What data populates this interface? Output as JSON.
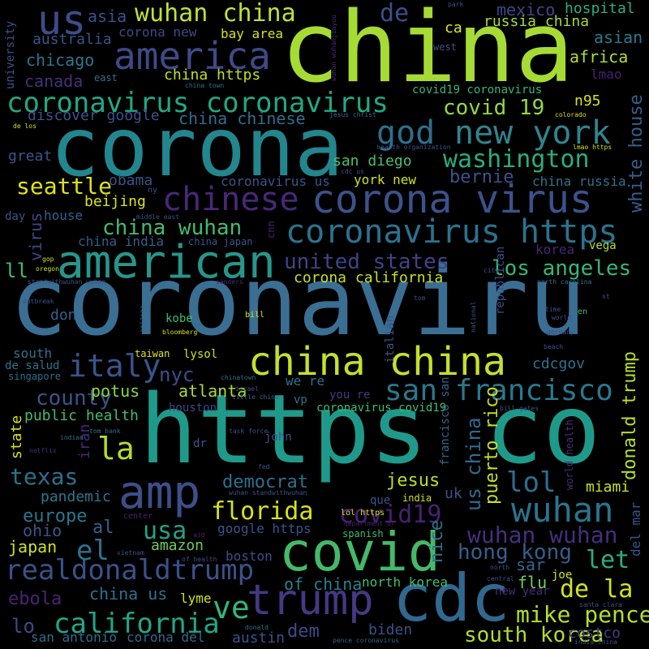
{
  "words": [
    {
      "text": "coronaviru",
      "color": "#3b6e93"
    },
    {
      "text": "https co",
      "color": "#1f9a8a"
    },
    {
      "text": "china",
      "color": "#a6db35"
    },
    {
      "text": "corona",
      "color": "#23868e"
    },
    {
      "text": "american",
      "color": "#27968b"
    },
    {
      "text": "covid",
      "color": "#45b96a"
    },
    {
      "text": "cdc",
      "color": "#31688e"
    },
    {
      "text": "trump",
      "color": "#443983"
    },
    {
      "text": "amp",
      "color": "#3c4f8a"
    },
    {
      "text": "china china",
      "color": "#c4e02c"
    },
    {
      "text": "corona virus",
      "color": "#3b528b"
    },
    {
      "text": "coronavirus https",
      "color": "#2c728e"
    },
    {
      "text": "coronavirus coronavirus",
      "color": "#23a883"
    },
    {
      "text": "god",
      "color": "#2e6f8e"
    },
    {
      "text": "new york",
      "color": "#31848d"
    },
    {
      "text": "america",
      "color": "#3e4a89"
    },
    {
      "text": "us",
      "color": "#3e4c8a"
    },
    {
      "text": "wuhan china",
      "color": "#bfe03a"
    },
    {
      "text": "chinese",
      "color": "#482878"
    },
    {
      "text": "san francisco",
      "color": "#2a788e"
    },
    {
      "text": "wuhan",
      "color": "#2b748e"
    },
    {
      "text": "realdonaldtrump",
      "color": "#3b5289"
    },
    {
      "text": "california",
      "color": "#22a685"
    },
    {
      "text": "florida",
      "color": "#d8e219"
    },
    {
      "text": "italy",
      "color": "#3a548c"
    },
    {
      "text": "usa",
      "color": "#20a386"
    },
    {
      "text": "washington",
      "color": "#28ae80"
    },
    {
      "text": "covid19",
      "color": "#482173"
    },
    {
      "text": "wuhan wuhan",
      "color": "#472e7c"
    },
    {
      "text": "mike pence",
      "color": "#b5de2b"
    },
    {
      "text": "south korea",
      "color": "#b0dd2f"
    },
    {
      "text": "hong kong",
      "color": "#355f8d"
    },
    {
      "text": "de la",
      "color": "#d2e21b"
    },
    {
      "text": "let",
      "color": "#29af7f"
    },
    {
      "text": "lol",
      "color": "#2e6e8e"
    },
    {
      "text": "la",
      "color": "#b5de2b"
    },
    {
      "text": "el",
      "color": "#2c728e"
    },
    {
      "text": "ve",
      "color": "#34b679"
    },
    {
      "text": "texas",
      "color": "#2d708e"
    },
    {
      "text": "county",
      "color": "#3b528b"
    },
    {
      "text": "seattle",
      "color": "#dde318"
    },
    {
      "text": "united states",
      "color": "#404387"
    },
    {
      "text": "los angeles",
      "color": "#35b779"
    },
    {
      "text": "covid 19",
      "color": "#95d840"
    },
    {
      "text": "china wuhan",
      "color": "#3fbc73"
    },
    {
      "text": "bernie",
      "color": "#3b528b"
    },
    {
      "text": "white house",
      "color": "#355f8d"
    },
    {
      "text": "donald trump",
      "color": "#b8de29"
    },
    {
      "text": "us china",
      "color": "#31688e"
    },
    {
      "text": "puerto rico",
      "color": "#c5e021"
    },
    {
      "text": "europe",
      "color": "#2a778e"
    },
    {
      "text": "nyc",
      "color": "#3d4d8a"
    },
    {
      "text": "atlanta",
      "color": "#a8db34"
    },
    {
      "text": "jesus",
      "color": "#b8de29"
    },
    {
      "text": "democrat",
      "color": "#2e6f8e"
    },
    {
      "text": "japan",
      "color": "#d0e11c"
    },
    {
      "text": "ebola",
      "color": "#482475"
    },
    {
      "text": "amazon",
      "color": "#6ccd5a"
    },
    {
      "text": "ohio",
      "color": "#3a548c"
    },
    {
      "text": "al",
      "color": "#35608d"
    },
    {
      "text": "lo",
      "color": "#3e4989"
    },
    {
      "text": "dem",
      "color": "#3e4a89"
    },
    {
      "text": "biden",
      "color": "#3b528b"
    },
    {
      "text": "austin",
      "color": "#3a538b"
    },
    {
      "text": "san antonio",
      "color": "#2e6e8e"
    },
    {
      "text": "corona del",
      "color": "#2f6c8e"
    },
    {
      "text": "costco",
      "color": "#433e85"
    },
    {
      "text": "boston",
      "color": "#3c4f8a"
    },
    {
      "text": "miami",
      "color": "#c5e021"
    },
    {
      "text": "nice",
      "color": "#2c738e"
    },
    {
      "text": "china us",
      "color": "#2c728e"
    },
    {
      "text": "lyme",
      "color": "#d2e21b"
    },
    {
      "text": "of china",
      "color": "#26818e"
    },
    {
      "text": "north korea",
      "color": "#3fbc73"
    },
    {
      "text": "san diego",
      "color": "#4ac16d"
    },
    {
      "text": "york new",
      "color": "#d0e11c"
    },
    {
      "text": "beijing",
      "color": "#dae319"
    },
    {
      "text": "obama",
      "color": "#3a538b"
    },
    {
      "text": "chicago",
      "color": "#2a788e"
    },
    {
      "text": "canada",
      "color": "#472f7d"
    },
    {
      "text": "australia",
      "color": "#3a548c"
    },
    {
      "text": "asia",
      "color": "#3b518b"
    },
    {
      "text": "de",
      "color": "#3d4e8a"
    },
    {
      "text": "ca",
      "color": "#e5e419"
    },
    {
      "text": "mexico",
      "color": "#3f4788"
    },
    {
      "text": "hospital",
      "color": "#29af7f"
    },
    {
      "text": "russia china",
      "color": "#a5db36"
    },
    {
      "text": "asian",
      "color": "#287c8e"
    },
    {
      "text": "africa",
      "color": "#b2dd2d"
    },
    {
      "text": "lmao",
      "color": "#482071"
    },
    {
      "text": "n95",
      "color": "#d8e219"
    },
    {
      "text": "china https",
      "color": "#c0df25"
    },
    {
      "text": "china chinese",
      "color": "#2e6e8e"
    },
    {
      "text": "discover google",
      "color": "#3b528b"
    },
    {
      "text": "corona new",
      "color": "#3e4a89"
    },
    {
      "text": "bay area",
      "color": "#d2e21b"
    },
    {
      "text": "covid19 coronavirus",
      "color": "#35b779"
    },
    {
      "text": "great",
      "color": "#3a548c"
    },
    {
      "text": "virus",
      "color": "#414487"
    },
    {
      "text": "day",
      "color": "#3b528b"
    },
    {
      "text": "house",
      "color": "#355f8d"
    },
    {
      "text": "ll",
      "color": "#3fbc73"
    },
    {
      "text": "china india",
      "color": "#365c8d"
    },
    {
      "text": "china russia",
      "color": "#2c738e"
    },
    {
      "text": "coronavirus us",
      "color": "#3a548c"
    },
    {
      "text": "university",
      "color": "#3b528b"
    },
    {
      "text": "corona california",
      "color": "#c8e020"
    },
    {
      "text": "don",
      "color": "#34618d"
    },
    {
      "text": "kobe",
      "color": "#3fbc73"
    },
    {
      "text": "lysol",
      "color": "#d2e21b"
    },
    {
      "text": "south",
      "color": "#2d718e"
    },
    {
      "text": "de salud",
      "color": "#2b758e"
    },
    {
      "text": "singapore",
      "color": "#2e6f8e"
    },
    {
      "text": "potus",
      "color": "#8bd646"
    },
    {
      "text": "houston",
      "color": "#414487"
    },
    {
      "text": "public health",
      "color": "#3fbc73"
    },
    {
      "text": "state",
      "color": "#d2e21b"
    },
    {
      "text": "iran",
      "color": "#482878"
    },
    {
      "text": "we re",
      "color": "#2c738e"
    },
    {
      "text": "you re",
      "color": "#443a83"
    },
    {
      "text": "coronavirus covid19",
      "color": "#3fbc73"
    },
    {
      "text": "francisco san",
      "color": "#31688e"
    },
    {
      "text": "cdcgov",
      "color": "#2c728e"
    },
    {
      "text": "korea",
      "color": "#482475"
    },
    {
      "text": "vega",
      "color": "#b5de2b"
    },
    {
      "text": "republican",
      "color": "#3b528b"
    },
    {
      "text": "italian",
      "color": "#3a538b"
    },
    {
      "text": "pandemic",
      "color": "#2a788e"
    },
    {
      "text": "google https",
      "color": "#3b528b"
    },
    {
      "text": "uk",
      "color": "#3b528b"
    },
    {
      "text": "flu",
      "color": "#73d055"
    },
    {
      "text": "sar",
      "color": "#31688e"
    },
    {
      "text": "joe",
      "color": "#d2e21b"
    },
    {
      "text": "del mar",
      "color": "#3a548c"
    },
    {
      "text": "taiwan",
      "color": "#e1e41d"
    },
    {
      "text": "dr",
      "color": "#3b528b"
    },
    {
      "text": "john",
      "color": "#3b528b"
    },
    {
      "text": "vp",
      "color": "#2c738e"
    },
    {
      "text": "que",
      "color": "#3b528b"
    },
    {
      "text": "india",
      "color": "#d0e11c"
    },
    {
      "text": "spanish",
      "color": "#3fbc73"
    },
    {
      "text": "lol https",
      "color": "#d8e219"
    },
    {
      "text": "new year",
      "color": "#472d7b"
    },
    {
      "text": "world health",
      "color": "#472f7d"
    },
    {
      "text": "wuhan standwithwuhan",
      "color": "#3b528b"
    },
    {
      "text": "department of",
      "color": "#482475"
    },
    {
      "text": "tom hank",
      "color": "#2c728e"
    },
    {
      "text": "indian",
      "color": "#2c728e"
    },
    {
      "text": "netflix",
      "color": "#472d7b"
    },
    {
      "text": "center",
      "color": "#482475"
    },
    {
      "text": "aid",
      "color": "#482475"
    },
    {
      "text": "vietnam",
      "color": "#3b528b"
    },
    {
      "text": "of health",
      "color": "#3b528b"
    },
    {
      "text": "donald",
      "color": "#2c728e"
    },
    {
      "text": "pence coronavirus",
      "color": "#31688e"
    },
    {
      "text": "india china",
      "color": "#3b528b"
    },
    {
      "text": "santa clara",
      "color": "#3b528b"
    },
    {
      "text": "north",
      "color": "#3b528b"
    },
    {
      "text": "central",
      "color": "#3b528b"
    },
    {
      "text": "bill gates",
      "color": "#3b528b"
    },
    {
      "text": "chinatown",
      "color": "#2c728e"
    },
    {
      "text": "israel",
      "color": "#3b528b"
    },
    {
      "text": "little china",
      "color": "#31688e"
    },
    {
      "text": "task force",
      "color": "#3b528b"
    },
    {
      "text": "fed",
      "color": "#3b528b"
    },
    {
      "text": "bloomberg",
      "color": "#d2e21b"
    },
    {
      "text": "arizona",
      "color": "#2c728e"
    },
    {
      "text": "bill",
      "color": "#d2e21b"
    },
    {
      "text": "tom",
      "color": "#3b528b"
    },
    {
      "text": "outbreak",
      "color": "#3b528b"
    },
    {
      "text": "standwithwuhan wuhan",
      "color": "#3b528b"
    },
    {
      "text": "sanders",
      "color": "#472d7b"
    },
    {
      "text": "national",
      "color": "#3b528b"
    },
    {
      "text": "time",
      "color": "#3b528b"
    },
    {
      "text": "world",
      "color": "#3b528b"
    },
    {
      "text": "germany",
      "color": "#3b528b"
    },
    {
      "text": "beach",
      "color": "#3b528b"
    },
    {
      "text": "en",
      "color": "#3fbc73"
    },
    {
      "text": "st",
      "color": "#3b528b"
    },
    {
      "text": "north carolina",
      "color": "#2c728e"
    },
    {
      "text": "city",
      "color": "#3b528b"
    },
    {
      "text": "gop",
      "color": "#d2e21b"
    },
    {
      "text": "oregon",
      "color": "#d2e21b"
    },
    {
      "text": "middle east",
      "color": "#3b528b"
    },
    {
      "text": "china japan",
      "color": "#3b528b"
    },
    {
      "text": "cnn",
      "color": "#482475"
    },
    {
      "text": "ny",
      "color": "#3b528b"
    },
    {
      "text": "cdc us",
      "color": "#3b528b"
    },
    {
      "text": "health organization",
      "color": "#3b528b"
    },
    {
      "text": "lmao https",
      "color": "#d2e21b"
    },
    {
      "text": "colorado",
      "color": "#d2e21b"
    },
    {
      "text": "jesus christ",
      "color": "#2c728e"
    },
    {
      "text": "china town",
      "color": "#2c728e"
    },
    {
      "text": "de los",
      "color": "#d2e21b"
    },
    {
      "text": "park",
      "color": "#3b528b"
    },
    {
      "text": "wuhan wuhanjiayou",
      "color": "#472d7b"
    },
    {
      "text": "west",
      "color": "#3b528b"
    },
    {
      "text": "east",
      "color": "#2c728e"
    }
  ]
}
